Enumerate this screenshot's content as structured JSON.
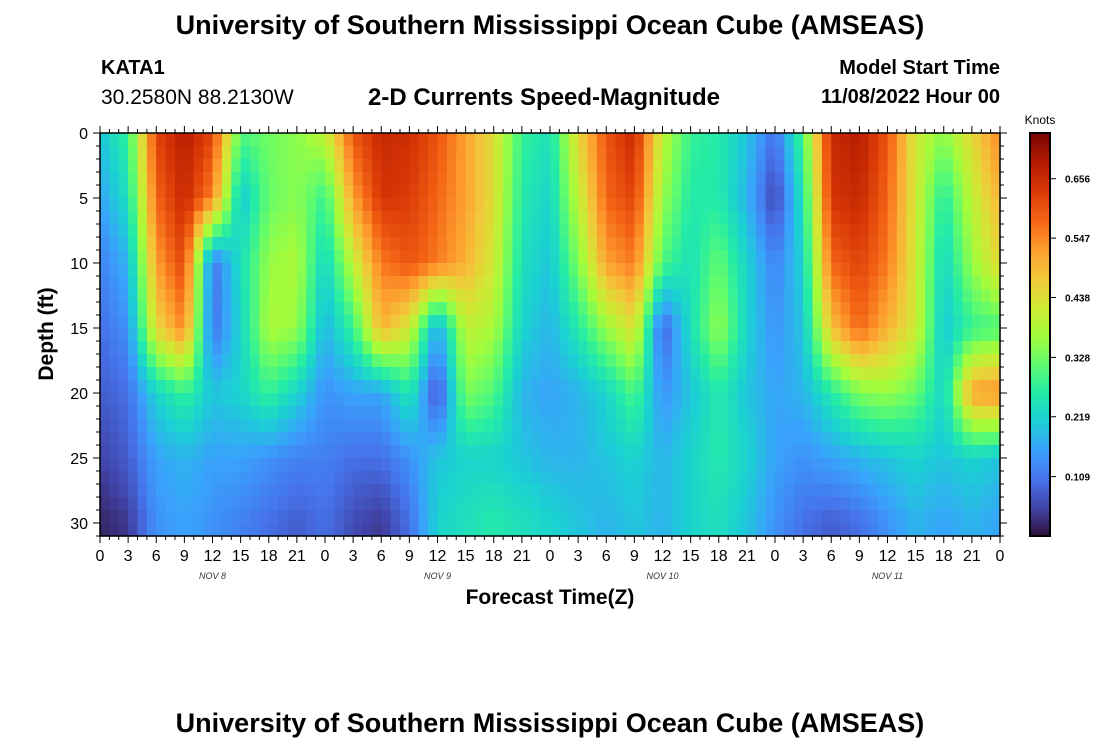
{
  "header": {
    "title": "University of Southern Mississippi Ocean Cube (AMSEAS)",
    "station": "KATA1",
    "coordinates": "30.2580N  88.2130W",
    "subtitle": "2-D Currents Speed-Magnitude",
    "model_start_label": "Model Start Time",
    "model_start_value": "11/08/2022 Hour 00"
  },
  "footer": {
    "title": "University of Southern Mississippi Ocean Cube (AMSEAS)"
  },
  "chart_data": {
    "type": "heatmap",
    "title": "2-D Currents Speed-Magnitude",
    "xlabel": "Forecast Time(Z)",
    "ylabel": "Depth (ft)",
    "x_range_hours": [
      0,
      96
    ],
    "ylim": [
      0,
      31
    ],
    "y_inverted": true,
    "x_tick_labels": [
      "0",
      "3",
      "6",
      "9",
      "12",
      "15",
      "18",
      "21",
      "0",
      "3",
      "6",
      "9",
      "12",
      "15",
      "18",
      "21",
      "0",
      "3",
      "6",
      "9",
      "12",
      "15",
      "18",
      "21",
      "0",
      "3",
      "6",
      "9",
      "12",
      "15",
      "18",
      "21",
      "0"
    ],
    "y_ticks": [
      0,
      5,
      10,
      15,
      20,
      25,
      30
    ],
    "day_labels": [
      {
        "label": "NOV 8",
        "hour": 12
      },
      {
        "label": "NOV 9",
        "hour": 36
      },
      {
        "label": "NOV 10",
        "hour": 60
      },
      {
        "label": "NOV 11",
        "hour": 84
      }
    ],
    "colorbar": {
      "label": "Knots",
      "ticks": [
        "0.656",
        "0.547",
        "0.438",
        "0.328",
        "0.219",
        "0.109"
      ],
      "tick_values": [
        0.656,
        0.547,
        0.438,
        0.328,
        0.219,
        0.109
      ],
      "range": [
        0.0,
        0.74
      ],
      "colors": [
        "#30123b",
        "#4145ab",
        "#4675ed",
        "#39a2fc",
        "#1bcfd4",
        "#24eca6",
        "#61fc6c",
        "#a4fc3b",
        "#d1e834",
        "#f3c63a",
        "#fe9b2d",
        "#f36315",
        "#d93806",
        "#b11901",
        "#7a0402"
      ]
    },
    "grid_columns_hours": [
      0,
      3,
      6,
      9,
      12,
      15,
      18,
      21,
      24,
      27,
      30,
      33,
      36,
      39,
      42,
      45,
      48,
      51,
      54,
      57,
      60,
      63,
      66,
      69,
      72,
      75,
      78,
      81,
      84,
      87,
      90,
      93,
      96
    ],
    "grid_rows_depth_ft": [
      0,
      5,
      10,
      15,
      20,
      25,
      30
    ],
    "speed_knots_grid": [
      [
        0.2,
        0.28,
        0.62,
        0.68,
        0.62,
        0.3,
        0.33,
        0.35,
        0.4,
        0.6,
        0.66,
        0.65,
        0.6,
        0.52,
        0.44,
        0.28,
        0.24,
        0.45,
        0.6,
        0.66,
        0.4,
        0.28,
        0.26,
        0.2,
        0.1,
        0.3,
        0.66,
        0.68,
        0.6,
        0.42,
        0.35,
        0.45,
        0.55
      ],
      [
        0.16,
        0.24,
        0.58,
        0.66,
        0.55,
        0.2,
        0.32,
        0.35,
        0.28,
        0.52,
        0.64,
        0.63,
        0.58,
        0.52,
        0.44,
        0.26,
        0.22,
        0.4,
        0.58,
        0.62,
        0.36,
        0.26,
        0.26,
        0.18,
        0.05,
        0.25,
        0.64,
        0.66,
        0.58,
        0.42,
        0.26,
        0.4,
        0.5
      ],
      [
        0.12,
        0.18,
        0.52,
        0.62,
        0.1,
        0.24,
        0.36,
        0.38,
        0.22,
        0.4,
        0.56,
        0.6,
        0.56,
        0.5,
        0.42,
        0.24,
        0.2,
        0.34,
        0.52,
        0.56,
        0.3,
        0.24,
        0.32,
        0.22,
        0.12,
        0.22,
        0.58,
        0.62,
        0.56,
        0.42,
        0.22,
        0.36,
        0.45
      ],
      [
        0.1,
        0.14,
        0.45,
        0.55,
        0.1,
        0.22,
        0.38,
        0.36,
        0.18,
        0.28,
        0.5,
        0.42,
        0.16,
        0.4,
        0.38,
        0.22,
        0.18,
        0.26,
        0.36,
        0.44,
        0.08,
        0.24,
        0.36,
        0.22,
        0.14,
        0.2,
        0.48,
        0.58,
        0.5,
        0.42,
        0.2,
        0.28,
        0.3
      ],
      [
        0.08,
        0.1,
        0.22,
        0.28,
        0.2,
        0.22,
        0.28,
        0.22,
        0.14,
        0.16,
        0.16,
        0.26,
        0.06,
        0.34,
        0.3,
        0.18,
        0.16,
        0.18,
        0.22,
        0.3,
        0.14,
        0.2,
        0.26,
        0.2,
        0.16,
        0.18,
        0.26,
        0.34,
        0.36,
        0.32,
        0.22,
        0.52,
        0.54
      ],
      [
        0.05,
        0.08,
        0.16,
        0.18,
        0.16,
        0.16,
        0.14,
        0.12,
        0.12,
        0.1,
        0.1,
        0.14,
        0.2,
        0.22,
        0.22,
        0.2,
        0.18,
        0.18,
        0.2,
        0.22,
        0.18,
        0.22,
        0.26,
        0.22,
        0.16,
        0.14,
        0.16,
        0.18,
        0.2,
        0.22,
        0.2,
        0.22,
        0.2
      ],
      [
        0.02,
        0.04,
        0.14,
        0.16,
        0.14,
        0.12,
        0.1,
        0.08,
        0.1,
        0.06,
        0.04,
        0.1,
        0.22,
        0.24,
        0.26,
        0.24,
        0.22,
        0.2,
        0.18,
        0.2,
        0.18,
        0.22,
        0.24,
        0.2,
        0.14,
        0.1,
        0.08,
        0.1,
        0.14,
        0.18,
        0.16,
        0.18,
        0.16
      ]
    ],
    "annotations": []
  }
}
